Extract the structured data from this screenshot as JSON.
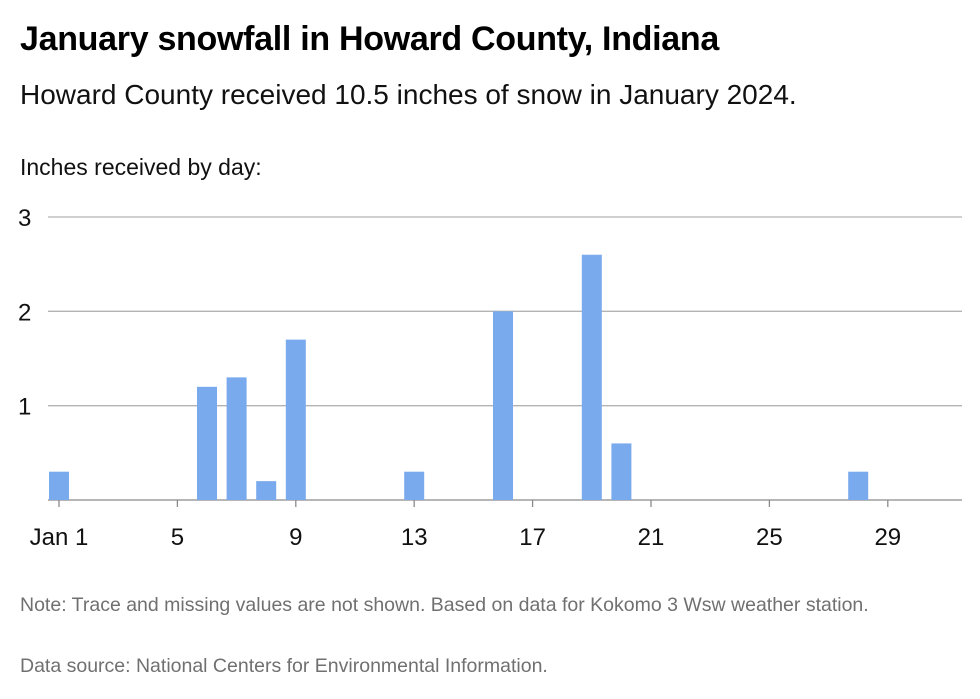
{
  "header": {
    "title": "January snowfall in Howard County, Indiana",
    "subtitle": "Howard County received 10.5 inches of snow in January 2024."
  },
  "footer": {
    "note": "Note: Trace and missing values are not shown. Based on data for Kokomo 3 Wsw weather station.",
    "source": "Data source: National Centers for Environmental Information."
  },
  "colors": {
    "bar": "#7aaaee",
    "grid": "#b3b3b3",
    "baseline": "#8a8a8a"
  },
  "chart_data": {
    "type": "bar",
    "title": "January snowfall in Howard County, Indiana",
    "subtitle": "Howard County received 10.5 inches of snow in January 2024.",
    "ylabel": "Inches received by day:",
    "xlabel": "",
    "xlim": [
      1,
      31
    ],
    "ylim": [
      0,
      3
    ],
    "grid": true,
    "legend": "none",
    "y_ticks": [
      1,
      2,
      3
    ],
    "x_ticks": [
      {
        "day": 1,
        "label": "Jan 1"
      },
      {
        "day": 5,
        "label": "5"
      },
      {
        "day": 9,
        "label": "9"
      },
      {
        "day": 13,
        "label": "13"
      },
      {
        "day": 17,
        "label": "17"
      },
      {
        "day": 21,
        "label": "21"
      },
      {
        "day": 25,
        "label": "25"
      },
      {
        "day": 29,
        "label": "29"
      }
    ],
    "days": [
      1,
      6,
      7,
      8,
      9,
      13,
      16,
      19,
      20,
      28
    ],
    "values": [
      0.3,
      1.2,
      1.3,
      0.2,
      1.7,
      0.3,
      2.0,
      2.6,
      0.6,
      0.3
    ]
  }
}
